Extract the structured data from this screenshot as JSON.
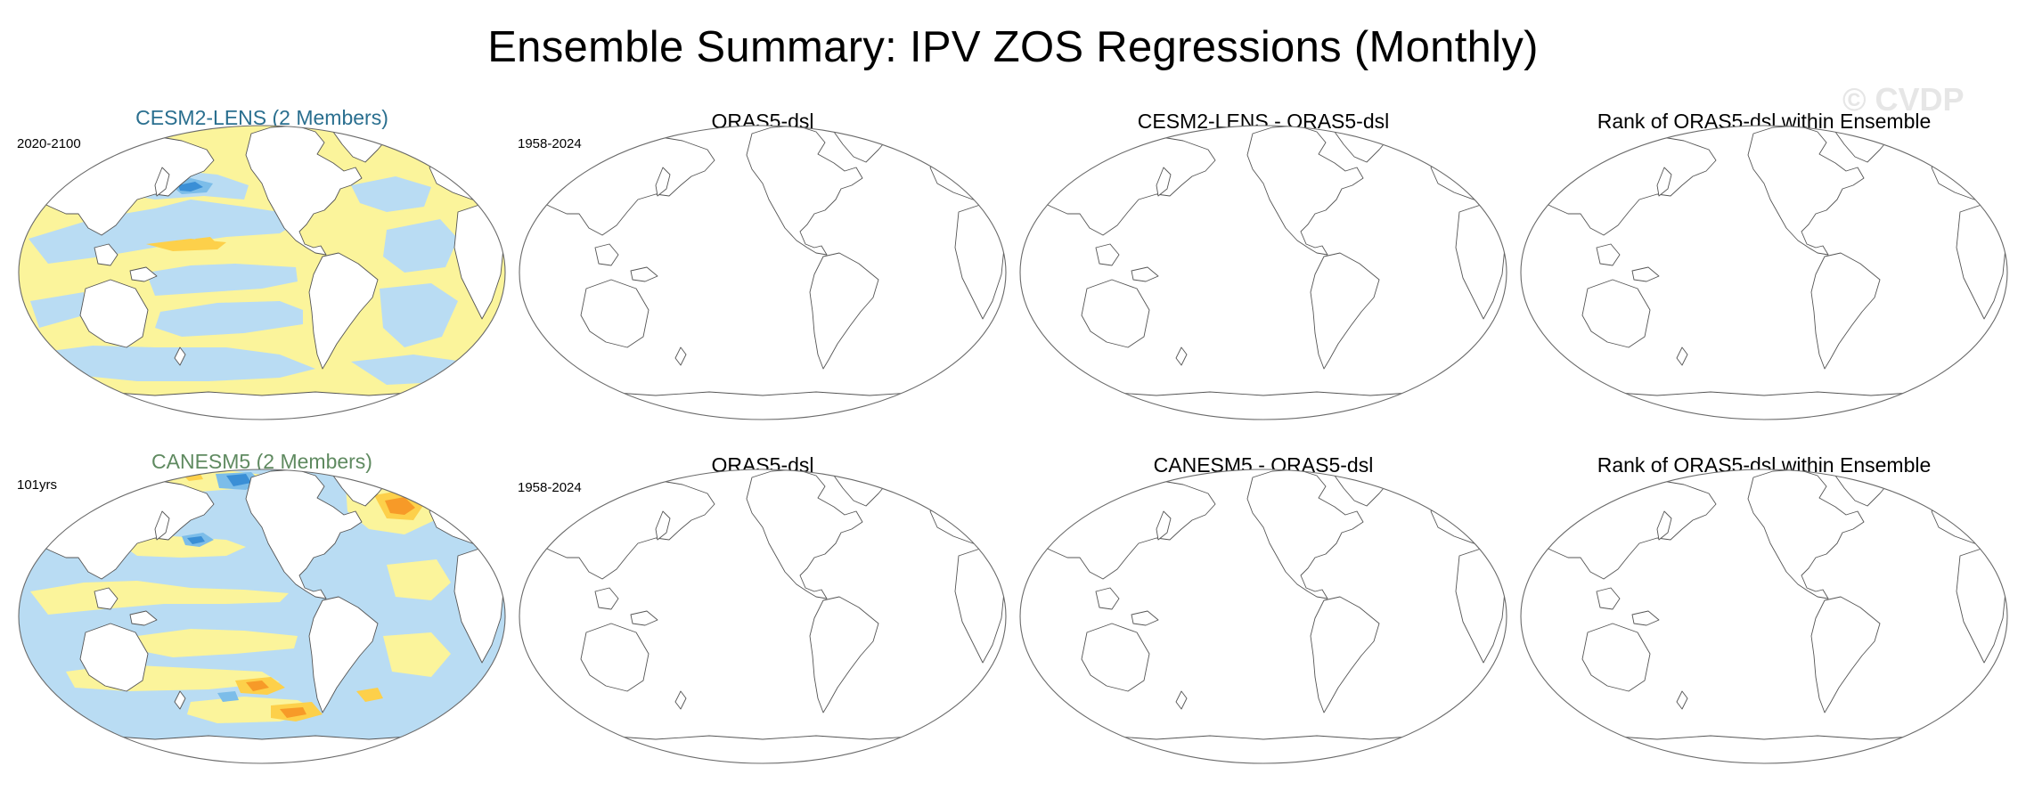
{
  "title": "Ensemble Summary: IPV ZOS Regressions (Monthly)",
  "watermark": "© CVDP",
  "colors": {
    "model_title": "#2a6f8f",
    "model_title_2": "#5f8a60",
    "positive_light": "#fbf49b",
    "positive_mid": "#fdd04a",
    "positive_strong": "#f79a28",
    "negative_light": "#b9dcf3",
    "negative_mid": "#7cbde9",
    "negative_strong": "#3a8fd6",
    "land": "#ffffff",
    "coast": "#555555"
  },
  "rows": [
    {
      "panels": [
        {
          "title": "CESM2-LENS (2 Members)",
          "period": "2020-2100",
          "filled": true,
          "pattern": "cesm2"
        },
        {
          "title": "ORAS5-dsl",
          "period": "1958-2024",
          "filled": false
        },
        {
          "title": "CESM2-LENS - ORAS5-dsl",
          "period": "",
          "filled": false
        },
        {
          "title": "Rank of ORAS5-dsl within Ensemble",
          "period": "",
          "filled": false
        }
      ]
    },
    {
      "panels": [
        {
          "title": "CANESM5 (2 Members)",
          "period": "101yrs",
          "filled": true,
          "pattern": "canesm5"
        },
        {
          "title": "ORAS5-dsl",
          "period": "1958-2024",
          "filled": false
        },
        {
          "title": "CANESM5 - ORAS5-dsl",
          "period": "",
          "filled": false
        },
        {
          "title": "Rank of ORAS5-dsl within Ensemble",
          "period": "",
          "filled": false
        }
      ]
    }
  ]
}
